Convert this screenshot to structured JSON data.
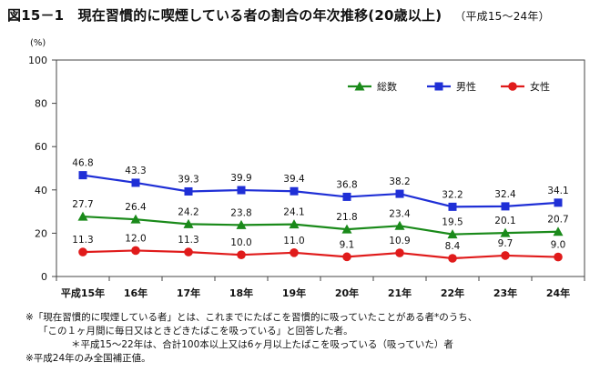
{
  "title": "図15－1　現在習慣的に喫煙している者の割合の年次推移(20歳以上)",
  "subtitle": "（平成15～24年）",
  "unit": "(%)",
  "legend": [
    {
      "label": "総数",
      "color": "#1a8a1a",
      "marker": "triangle"
    },
    {
      "label": "男性",
      "color": "#1f2fd6",
      "marker": "square"
    },
    {
      "label": "女性",
      "color": "#e01b1b",
      "marker": "circle"
    }
  ],
  "chart_data": {
    "type": "line",
    "categories": [
      "平成15年",
      "16年",
      "17年",
      "18年",
      "19年",
      "20年",
      "21年",
      "22年",
      "23年",
      "24年"
    ],
    "ylim": [
      0,
      100
    ],
    "yticks": [
      "0",
      "20",
      "40",
      "60",
      "80",
      "100"
    ],
    "grid": false,
    "legend_position": "top-right",
    "series": [
      {
        "name": "男性",
        "values": [
          46.8,
          43.3,
          39.3,
          39.9,
          39.4,
          36.8,
          38.2,
          32.2,
          32.4,
          34.1
        ],
        "labels": [
          "46.8",
          "43.3",
          "39.3",
          "39.9",
          "39.4",
          "36.8",
          "38.2",
          "32.2",
          "32.4",
          "34.1"
        ]
      },
      {
        "name": "総数",
        "values": [
          27.7,
          26.4,
          24.2,
          23.8,
          24.1,
          21.8,
          23.4,
          19.5,
          20.1,
          20.7
        ],
        "labels": [
          "27.7",
          "26.4",
          "24.2",
          "23.8",
          "24.1",
          "21.8",
          "23.4",
          "19.5",
          "20.1",
          "20.7"
        ]
      },
      {
        "name": "女性",
        "values": [
          11.3,
          12.0,
          11.3,
          10.0,
          11.0,
          9.1,
          10.9,
          8.4,
          9.7,
          9.0
        ],
        "labels": [
          "11.3",
          "12.0",
          "11.3",
          "10.0",
          "11.0",
          "9.1",
          "10.9",
          "8.4",
          "9.7",
          "9.0"
        ]
      }
    ]
  },
  "notes": [
    "※「現在習慣的に喫煙している者」とは、これまでにたばこを習慣的に吸っていたことがある者*のうち、",
    "「この１ヶ月間に毎日又はときどきたばこを吸っている」と回答した者。",
    "＊平成15～22年は、合計100本以上又は6ヶ月以上たばこを吸っている（吸っていた）者",
    "※平成24年のみ全国補正値。"
  ]
}
